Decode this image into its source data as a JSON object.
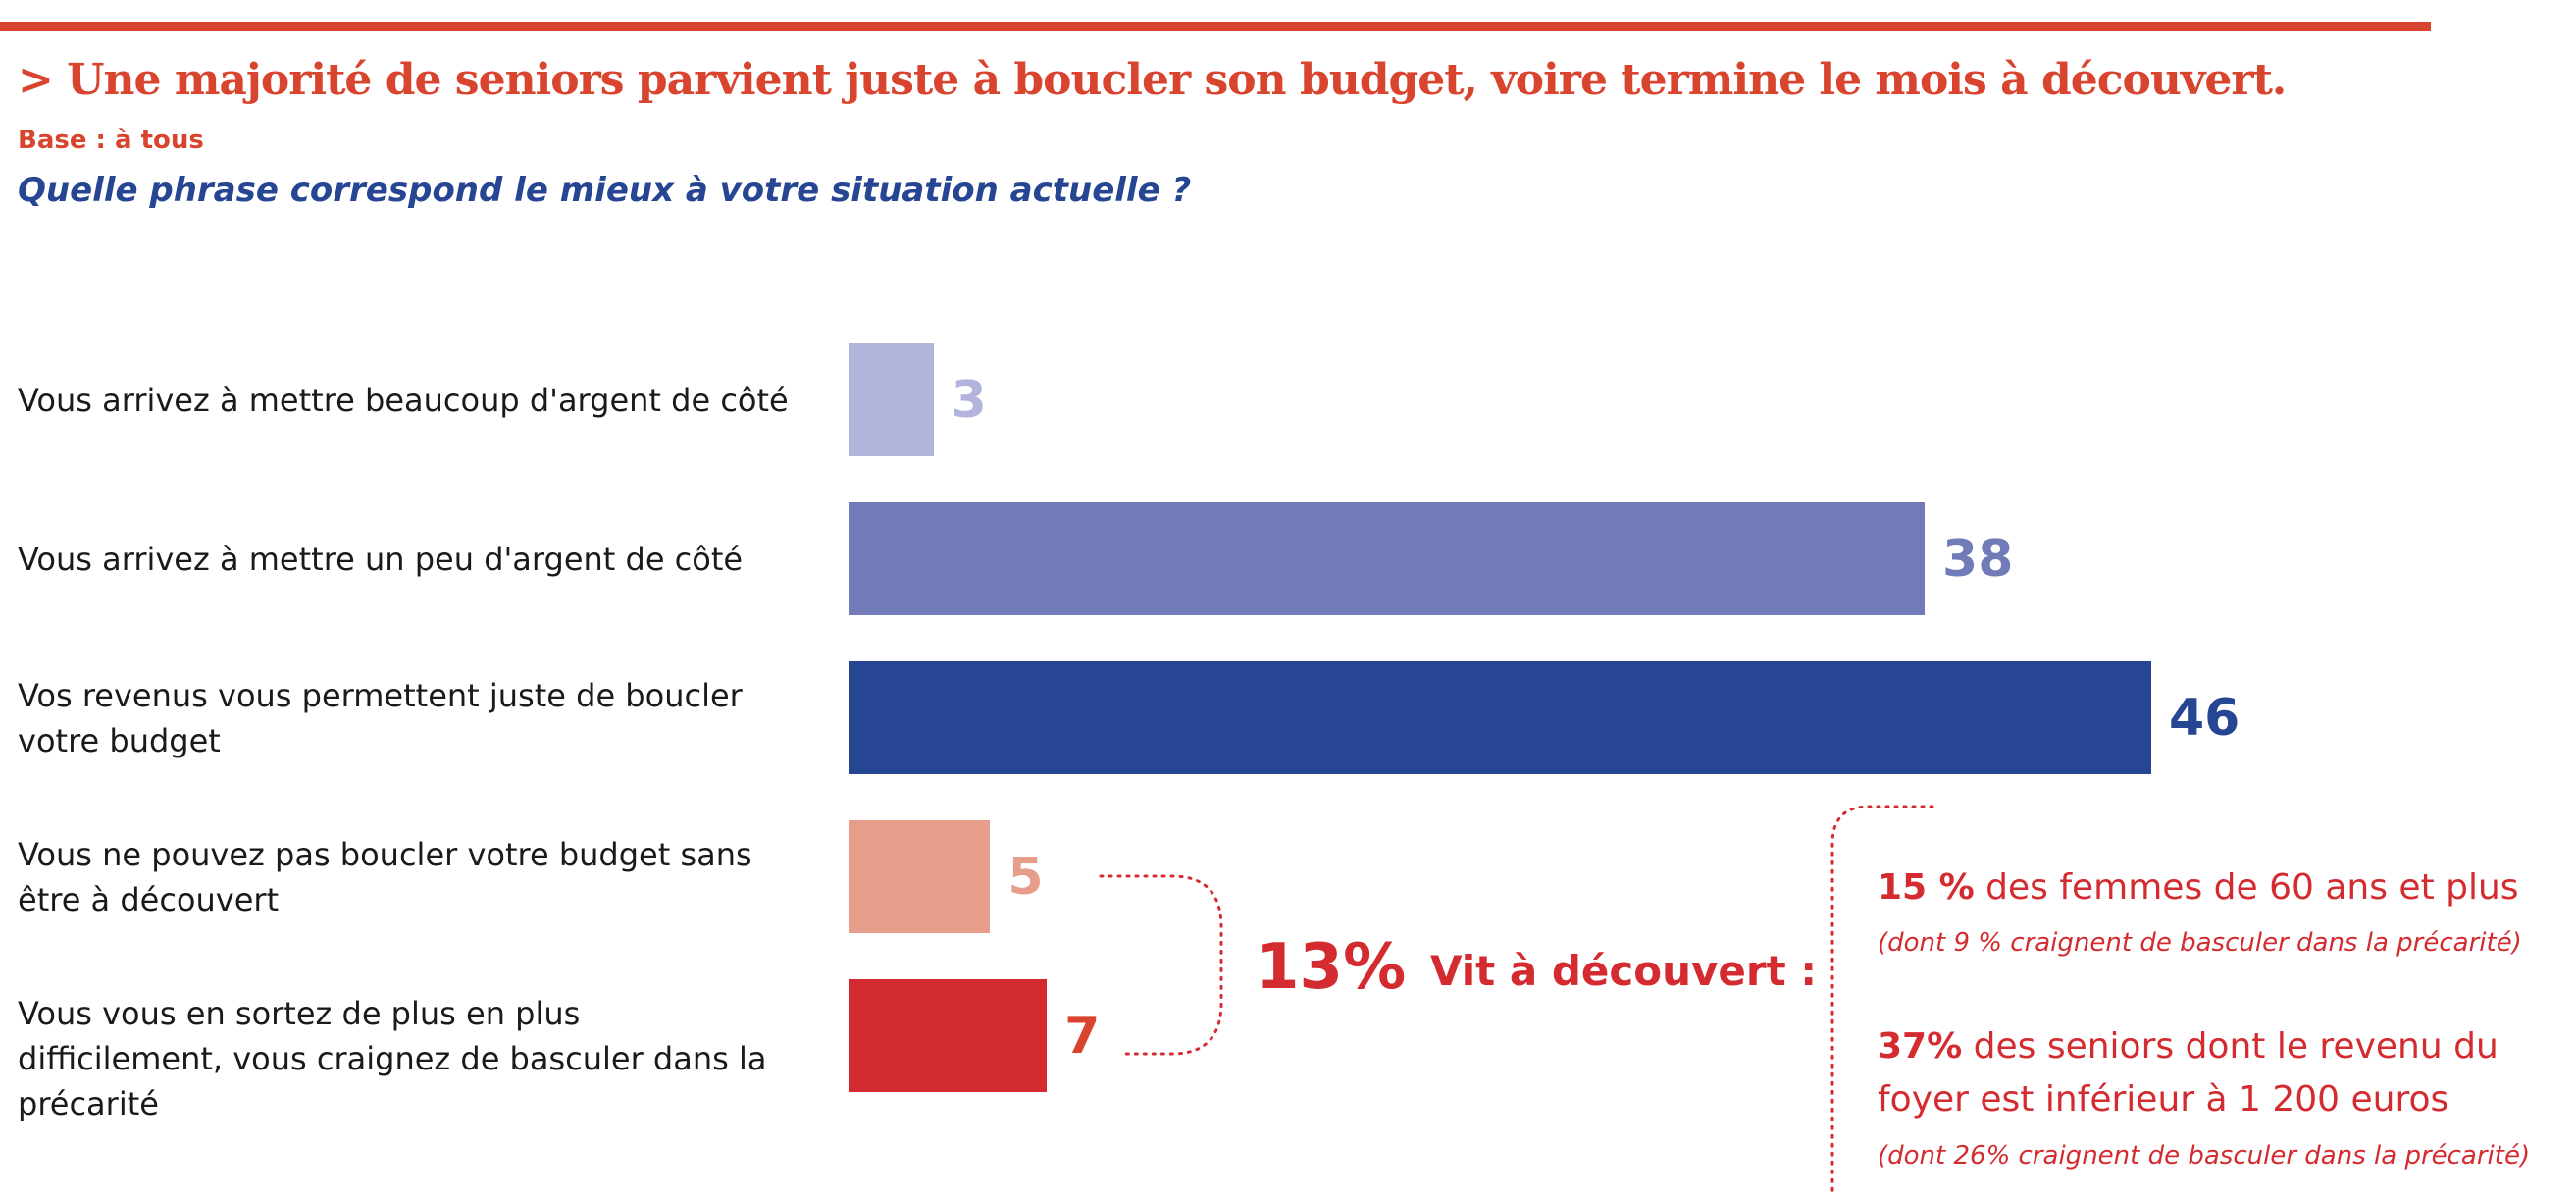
{
  "header": {
    "title": "> Une majorité de seniors parvient juste à boucler son budget, voire termine le mois à découvert.",
    "base": "Base : à tous",
    "question": "Quelle phrase correspond le mieux à votre situation actuelle ?"
  },
  "chart_data": {
    "type": "bar",
    "orientation": "horizontal",
    "categories": [
      "Vous arrivez à mettre beaucoup d'argent de côté",
      "Vous arrivez à mettre un peu d'argent de côté",
      "Vos revenus vous permettent juste de boucler votre budget",
      "Vous ne pouvez pas boucler votre budget sans être à découvert",
      "Vous vous en sortez de plus en plus difficilement, vous craignez de basculer dans la précarité"
    ],
    "values": [
      3,
      38,
      46,
      5,
      7
    ],
    "colors": [
      "#b2b4dc",
      "#717bb7",
      "#264592",
      "#e69d89",
      "#d32b2f"
    ],
    "label_colors": [
      "#b2b4dc",
      "#717bb7",
      "#264592",
      "#e69d89",
      "#d8442e"
    ],
    "xlim": [
      0,
      46
    ]
  },
  "annotation": {
    "total_pct": "13%",
    "label": "Vit à découvert :",
    "details": [
      {
        "pct": "15 %",
        "text": " des femmes de 60 ans et plus",
        "note": "(dont 9 % craignent de basculer dans la précarité)"
      },
      {
        "pct": "37%",
        "text": " des seniors dont le revenu du",
        "text2": "foyer est inférieur à 1 200 euros",
        "note": "(dont 26% craignent de basculer dans la précarité)"
      }
    ]
  }
}
